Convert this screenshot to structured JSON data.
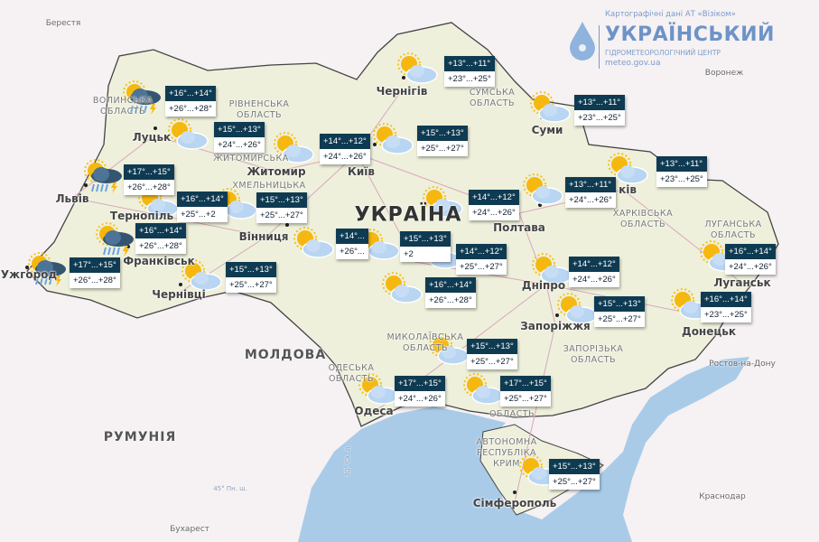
{
  "logo": {
    "source": "Картографічні дані АТ «Візіком»",
    "title": "УКРАЇНСЬКИЙ",
    "subtitle": "ГІДРОМЕТЕОРОЛОГІЧНИЙ ЦЕНТР",
    "url": "meteo.gov.ua"
  },
  "colors": {
    "land": "#eef0dc",
    "sea": "#a9cbe8",
    "background": "#f6f1f3",
    "card_header": "#0f3b52",
    "border": "#444444"
  },
  "country_labels": [
    "УКРАЇНА",
    "РУМУНІЯ",
    "МОЛДОВА"
  ],
  "grid_labels": [
    "45° Пн. ш.",
    "30° Сх. д."
  ],
  "cities": [
    "Луцьк",
    "Житомир",
    "Київ",
    "Чернігів",
    "Суми",
    "Полтава",
    "Львів",
    "Вінниця",
    "Ужгород",
    "Чернівці",
    "Дніпро",
    "Запоріжжя",
    "Луганськ",
    "Донецьк",
    "Одеса",
    "Сімферополь",
    "Тернопіль",
    "Франківськ",
    "ків"
  ],
  "foreign_cities": [
    "Берестя",
    "Воронеж",
    "Ростов-на-Дону",
    "Краснодар",
    "Бухарест"
  ],
  "regions": [
    "ВОЛИНСЬКА ОБЛАСТЬ",
    "РІВНЕНСЬКА ОБЛАСТЬ",
    "ЖИТОМИРСЬКА",
    "ХМЕЛЬНИЦЬКА",
    "СУМСЬКА ОБЛАСТЬ",
    "ХАРКІВСЬКА ОБЛАСТЬ",
    "ЛУГАНСЬКА ОБЛАСТЬ",
    "МИКОЛАЇВСЬКА ОБЛАСТЬ",
    "ОДЕСЬКА ОБЛАСТЬ",
    "ЗАПОРІЗЬКА ОБЛАСТЬ",
    "ОБЛАСТЬ",
    "АВТОНОМНА РЕСПУБЛІКА КРИМ"
  ],
  "forecasts": [
    {
      "night": "+16°...+14°",
      "day": "+26°...+28°",
      "icon": "thunderstorm-rain"
    },
    {
      "night": "+15°...+13°",
      "day": "+24°...+26°",
      "icon": "partly-cloudy"
    },
    {
      "night": "+14°...+12°",
      "day": "+24°...+26°",
      "icon": "partly-cloudy"
    },
    {
      "night": "+15°...+13°",
      "day": "+25°...+27°",
      "icon": "partly-cloudy"
    },
    {
      "night": "+13°...+11°",
      "day": "+23°...+25°",
      "icon": "partly-cloudy"
    },
    {
      "night": "+13°...+11°",
      "day": "+23°...+25°",
      "icon": "partly-cloudy"
    },
    {
      "night": "+13°...+11°",
      "day": "+23°...+25°",
      "icon": "partly-cloudy"
    },
    {
      "night": "+13°...+11°",
      "day": "+24°...+26°",
      "icon": "partly-cloudy"
    },
    {
      "night": "+14°...+12°",
      "day": "+24°...+26°",
      "icon": "partly-cloudy"
    },
    {
      "night": "+17°...+15°",
      "day": "+26°...+28°",
      "icon": "thunderstorm-rain"
    },
    {
      "night": "+16°...+14°",
      "day": "+25°...+2",
      "icon": "partly-cloudy"
    },
    {
      "night": "+15°...+13°",
      "day": "+25°...+27°",
      "icon": "partly-cloudy"
    },
    {
      "night": "+16°...+14°",
      "day": "+26°...+28°",
      "icon": "thunderstorm-rain"
    },
    {
      "night": "+17°...+15°",
      "day": "+26°...+28°",
      "icon": "thunderstorm-rain"
    },
    {
      "night": "+15°...+13°",
      "day": "+25°...+27°",
      "icon": "partly-cloudy"
    },
    {
      "night": "+14°...",
      "day": "+26°...",
      "icon": "partly-cloudy"
    },
    {
      "night": "+15°...+13°",
      "day": "+2",
      "icon": "partly-cloudy"
    },
    {
      "night": "+14°...+12°",
      "day": "+25°...+27°",
      "icon": "partly-cloudy"
    },
    {
      "night": "+16°...+14°",
      "day": "+26°...+28°",
      "icon": "partly-cloudy"
    },
    {
      "night": "+14°...+12°",
      "day": "+24°...+26°",
      "icon": "partly-cloudy"
    },
    {
      "night": "+15°...+13°",
      "day": "+25°...+27°",
      "icon": "partly-cloudy"
    },
    {
      "night": "+16°...+14°",
      "day": "+24°...+26°",
      "icon": "partly-cloudy"
    },
    {
      "night": "+16°...+14°",
      "day": "+23°...+25°",
      "icon": "partly-cloudy"
    },
    {
      "night": "+15°...+13°",
      "day": "+25°...+27°",
      "icon": "partly-cloudy"
    },
    {
      "night": "+17°...+15°",
      "day": "+24°...+26°",
      "icon": "partly-cloudy"
    },
    {
      "night": "+17°...+15°",
      "day": "+25°...+27°",
      "icon": "partly-cloudy"
    },
    {
      "night": "+15°...+13°",
      "day": "+25°...+27°",
      "icon": "partly-cloudy"
    }
  ]
}
